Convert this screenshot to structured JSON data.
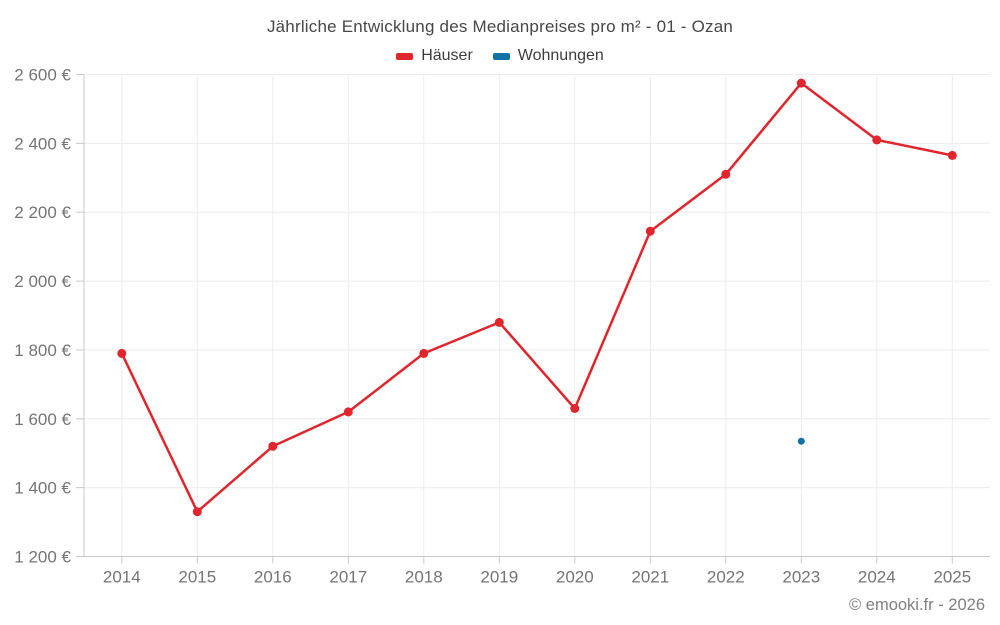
{
  "title": "Jährliche Entwicklung des Medianpreises pro m² - 01 - Ozan",
  "attribution": "© emooki.fr - 2026",
  "chart_data": {
    "type": "line",
    "title": "Jährliche Entwicklung des Medianpreises pro m² - 01 - Ozan",
    "categories": [
      "2014",
      "2015",
      "2016",
      "2017",
      "2018",
      "2019",
      "2020",
      "2021",
      "2022",
      "2023",
      "2024",
      "2025"
    ],
    "series": [
      {
        "name": "Häuser",
        "key": "haeuser",
        "color": "#e0262c",
        "point_radius": 4.5,
        "values": [
          1790,
          1330,
          1520,
          1620,
          1790,
          1880,
          1630,
          2145,
          2310,
          2575,
          2410,
          2365
        ]
      },
      {
        "name": "Wohnungen",
        "key": "wohnungen",
        "color": "#1272a5",
        "point_radius": 3.5,
        "values": [
          null,
          null,
          null,
          null,
          null,
          null,
          null,
          null,
          null,
          1535,
          null,
          null
        ]
      }
    ],
    "xlabel": "",
    "ylabel": "",
    "y_unit": "€",
    "ylim": [
      1200,
      2600
    ],
    "ytick_step": 200,
    "grid": true,
    "legend_position": "top",
    "style": {
      "grid_color": "#ececec",
      "axis_color": "#c9c9c9",
      "tick_label_color": "#757575",
      "tick_label_size": 17
    }
  }
}
